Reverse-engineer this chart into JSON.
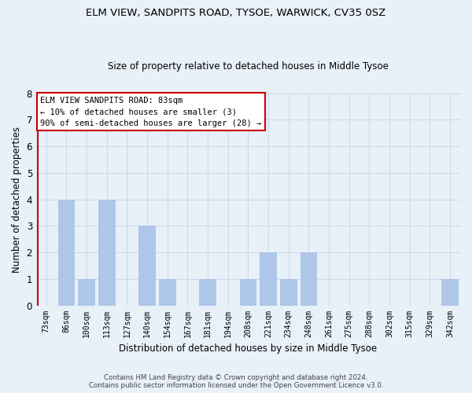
{
  "title": "ELM VIEW, SANDPITS ROAD, TYSOE, WARWICK, CV35 0SZ",
  "subtitle": "Size of property relative to detached houses in Middle Tysoe",
  "xlabel": "Distribution of detached houses by size in Middle Tysoe",
  "ylabel": "Number of detached properties",
  "bar_labels": [
    "73sqm",
    "86sqm",
    "100sqm",
    "113sqm",
    "127sqm",
    "140sqm",
    "154sqm",
    "167sqm",
    "181sqm",
    "194sqm",
    "208sqm",
    "221sqm",
    "234sqm",
    "248sqm",
    "261sqm",
    "275sqm",
    "288sqm",
    "302sqm",
    "315sqm",
    "329sqm",
    "342sqm"
  ],
  "bar_values": [
    0,
    4,
    1,
    4,
    0,
    3,
    1,
    0,
    1,
    0,
    1,
    2,
    1,
    2,
    0,
    0,
    0,
    0,
    0,
    0,
    1
  ],
  "bar_color": "#aec6e8",
  "ylim": [
    0,
    8
  ],
  "yticks": [
    0,
    1,
    2,
    3,
    4,
    5,
    6,
    7,
    8
  ],
  "annotation_line1": "ELM VIEW SANDPITS ROAD: 83sqm",
  "annotation_line2": "← 10% of detached houses are smaller (3)",
  "annotation_line3": "90% of semi-detached houses are larger (28) →",
  "annotation_box_color": "#ffffff",
  "annotation_box_edge_color": "#cc0000",
  "subject_line_color": "#cc0000",
  "grid_color": "#cdd8e8",
  "background_color": "#e8f0f8",
  "footer_line1": "Contains HM Land Registry data © Crown copyright and database right 2024.",
  "footer_line2": "Contains public sector information licensed under the Open Government Licence v3.0."
}
